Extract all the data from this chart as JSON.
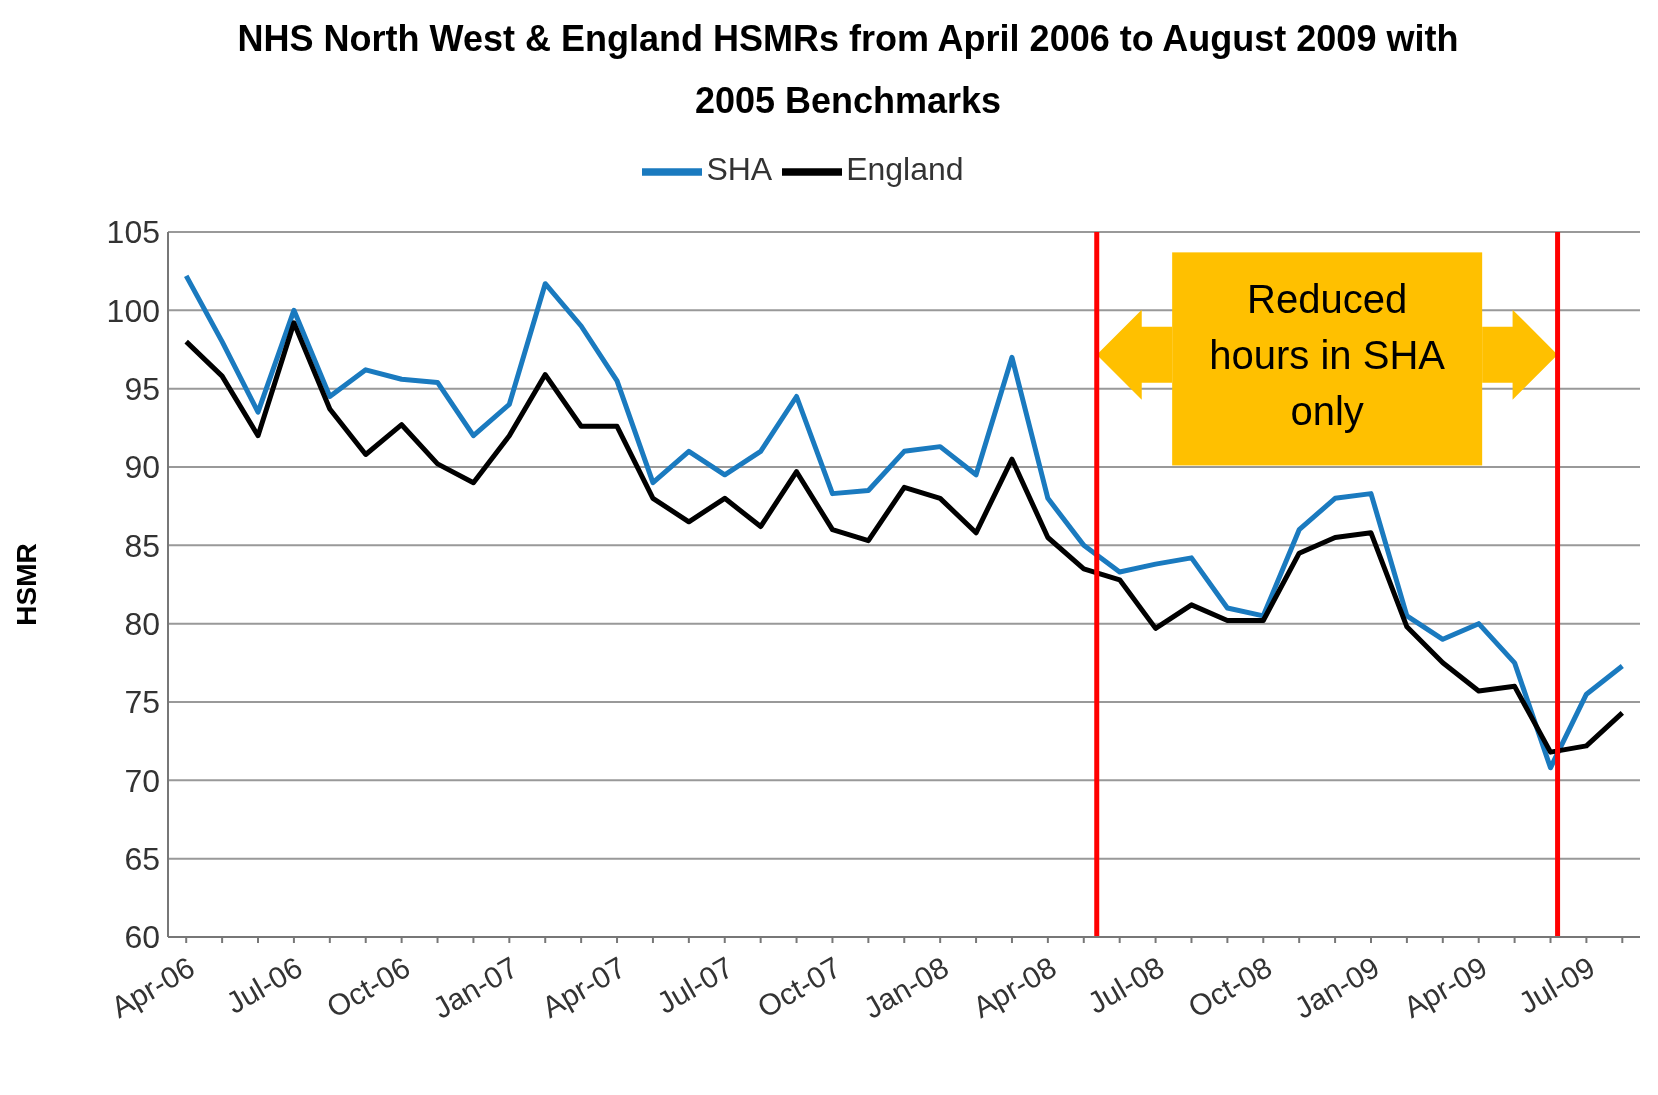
{
  "chart_data": {
    "type": "line",
    "title": "NHS North West & England HSMRs from April 2006 to August 2009 with 2005 Benchmarks",
    "ylabel": "HSMR",
    "x": [
      "2006-04",
      "2006-05",
      "2006-06",
      "2006-07",
      "2006-08",
      "2006-09",
      "2006-10",
      "2006-11",
      "2006-12",
      "2007-01",
      "2007-02",
      "2007-03",
      "2007-04",
      "2007-05",
      "2007-06",
      "2007-07",
      "2007-08",
      "2007-09",
      "2007-10",
      "2007-11",
      "2007-12",
      "2008-01",
      "2008-02",
      "2008-03",
      "2008-04",
      "2008-05",
      "2008-06",
      "2008-07",
      "2008-08",
      "2008-09",
      "2008-10",
      "2008-11",
      "2008-12",
      "2009-01",
      "2009-02",
      "2009-03",
      "2009-04",
      "2009-05",
      "2009-06",
      "2009-07",
      "2009-08"
    ],
    "series": [
      {
        "name": "SHA",
        "color": "#1a7abf",
        "values": [
          102.2,
          98,
          93.5,
          100,
          94.5,
          96.2,
          95.6,
          95.4,
          92,
          94,
          101.7,
          99,
          95.5,
          89,
          91,
          89.5,
          91,
          94.5,
          88.3,
          88.5,
          91,
          91.3,
          89.5,
          97,
          88,
          85,
          83.3,
          83.8,
          84.2,
          81,
          80.5,
          86,
          88,
          88.3,
          80.5,
          79,
          80,
          77.5,
          70.8,
          75.5,
          77.3
        ]
      },
      {
        "name": "England",
        "color": "#000000",
        "values": [
          98,
          95.8,
          92,
          99.2,
          93.7,
          90.8,
          92.7,
          90.2,
          89,
          92,
          95.9,
          92.6,
          92.6,
          88,
          86.5,
          88,
          86.2,
          89.7,
          86,
          85.3,
          88.7,
          88,
          85.8,
          90.5,
          85.5,
          83.5,
          82.8,
          79.7,
          81.2,
          80.2,
          80.2,
          84.5,
          85.5,
          85.8,
          79.8,
          77.5,
          75.7,
          76,
          71.8,
          72.2,
          74.3
        ]
      }
    ],
    "xlim": [
      "2006-03-16",
      "2009-08-16"
    ],
    "xticks": [
      {
        "value": "2006-04",
        "label": "Apr-06"
      },
      {
        "value": "2006-05",
        "label": null
      },
      {
        "value": "2006-06",
        "label": null
      },
      {
        "value": "2006-07",
        "label": "Jul-06"
      },
      {
        "value": "2006-08",
        "label": null
      },
      {
        "value": "2006-09",
        "label": null
      },
      {
        "value": "2006-10",
        "label": "Oct-06"
      },
      {
        "value": "2006-11",
        "label": null
      },
      {
        "value": "2006-12",
        "label": null
      },
      {
        "value": "2007-01",
        "label": "Jan-07"
      },
      {
        "value": "2007-02",
        "label": null
      },
      {
        "value": "2007-03",
        "label": null
      },
      {
        "value": "2007-04",
        "label": "Apr-07"
      },
      {
        "value": "2007-05",
        "label": null
      },
      {
        "value": "2007-06",
        "label": null
      },
      {
        "value": "2007-07",
        "label": "Jul-07"
      },
      {
        "value": "2007-08",
        "label": null
      },
      {
        "value": "2007-09",
        "label": null
      },
      {
        "value": "2007-10",
        "label": "Oct-07"
      },
      {
        "value": "2007-11",
        "label": null
      },
      {
        "value": "2007-12",
        "label": null
      },
      {
        "value": "2008-01",
        "label": "Jan-08"
      },
      {
        "value": "2008-02",
        "label": null
      },
      {
        "value": "2008-03",
        "label": null
      },
      {
        "value": "2008-04",
        "label": "Apr-08"
      },
      {
        "value": "2008-05",
        "label": null
      },
      {
        "value": "2008-06",
        "label": null
      },
      {
        "value": "2008-07",
        "label": "Jul-08"
      },
      {
        "value": "2008-08",
        "label": null
      },
      {
        "value": "2008-09",
        "label": null
      },
      {
        "value": "2008-10",
        "label": "Oct-08"
      },
      {
        "value": "2008-11",
        "label": null
      },
      {
        "value": "2008-12",
        "label": null
      },
      {
        "value": "2009-01",
        "label": "Jan-09"
      },
      {
        "value": "2009-02",
        "label": null
      },
      {
        "value": "2009-03",
        "label": null
      },
      {
        "value": "2009-04",
        "label": "Apr-09"
      },
      {
        "value": "2009-05",
        "label": null
      },
      {
        "value": "2009-06",
        "label": null
      },
      {
        "value": "2009-07",
        "label": "Jul-09"
      },
      {
        "value": "2009-08",
        "label": null
      }
    ],
    "ylim": [
      60,
      105
    ],
    "yticks": [
      60,
      65,
      70,
      75,
      80,
      85,
      90,
      95,
      100,
      105
    ],
    "grid": "y",
    "legend": "top",
    "marker": "none",
    "line_style": "solid",
    "ref_lines": [
      {
        "axis": "x",
        "value": "2008-05-12",
        "color": "#ff0000"
      },
      {
        "axis": "x",
        "value": "2009-06-07",
        "color": "#ff0000"
      }
    ],
    "annotations": [
      "Reduced hours in SHA only"
    ]
  }
}
